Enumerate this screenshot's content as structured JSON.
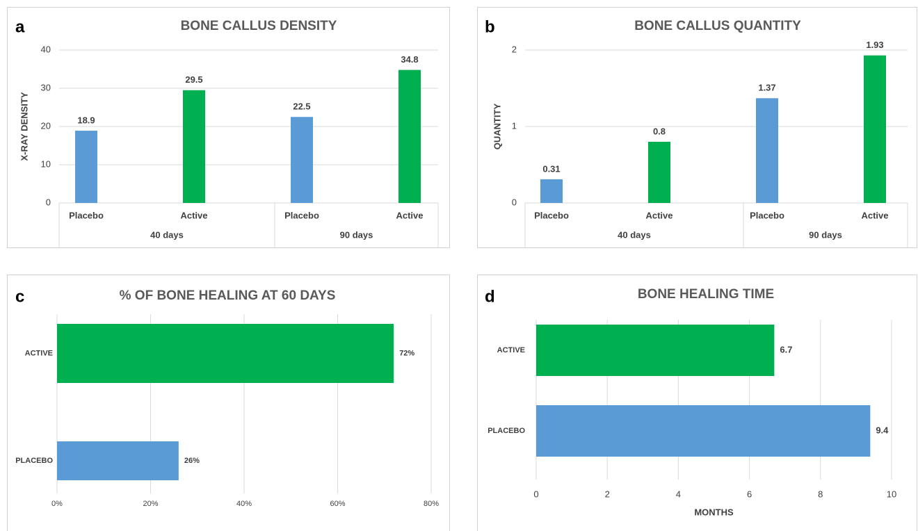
{
  "chart_data": [
    {
      "type": "bar",
      "panel": "a",
      "title": "BONE CALLUS DENSITY",
      "ylabel": "X-RAY DENSITY",
      "categories": [
        "Placebo",
        "Active",
        "Placebo",
        "Active"
      ],
      "groups": [
        "40 days",
        "90 days"
      ],
      "values": [
        18.9,
        29.5,
        22.5,
        34.8
      ],
      "colors": [
        "#5b9bd5",
        "#00b050",
        "#5b9bd5",
        "#00b050"
      ],
      "ylim": [
        0,
        40
      ],
      "yticks": [
        0,
        10,
        20,
        30,
        40
      ],
      "grid": true
    },
    {
      "type": "bar",
      "panel": "b",
      "title": "BONE CALLUS QUANTITY",
      "ylabel": "QUANTITY",
      "categories": [
        "Placebo",
        "Active",
        "Placebo",
        "Active"
      ],
      "groups": [
        "40 days",
        "90 days"
      ],
      "values": [
        0.31,
        0.8,
        1.37,
        1.93
      ],
      "colors": [
        "#5b9bd5",
        "#00b050",
        "#5b9bd5",
        "#00b050"
      ],
      "ylim": [
        0,
        2
      ],
      "yticks": [
        0,
        1,
        2
      ],
      "grid": true
    },
    {
      "type": "hbar",
      "panel": "c",
      "title": "% OF BONE HEALING AT 60 DAYS",
      "categories": [
        "ACTIVE",
        "PLACEBO"
      ],
      "values": [
        72,
        26
      ],
      "value_labels": [
        "72%",
        "26%"
      ],
      "colors": [
        "#00b050",
        "#5b9bd5"
      ],
      "xlim": [
        0,
        80
      ],
      "xticks": [
        {
          "value": 0,
          "label": "0%"
        },
        {
          "value": 20,
          "label": "20%"
        },
        {
          "value": 40,
          "label": "40%"
        },
        {
          "value": 60,
          "label": "60%"
        },
        {
          "value": 80,
          "label": "80%"
        }
      ],
      "grid": true
    },
    {
      "type": "hbar",
      "panel": "d",
      "title": "BONE HEALING TIME",
      "xlabel": "MONTHS",
      "categories": [
        "ACTIVE",
        "PLACEBO"
      ],
      "values": [
        6.7,
        9.4
      ],
      "colors": [
        "#00b050",
        "#5b9bd5"
      ],
      "xlim": [
        0,
        10
      ],
      "xticks": [
        0,
        2,
        4,
        6,
        8,
        10
      ],
      "grid": true
    }
  ]
}
